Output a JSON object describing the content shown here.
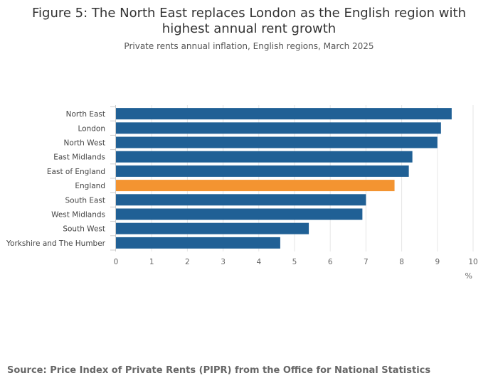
{
  "title": "Figure 5: The North East replaces London as the English region with highest annual rent growth",
  "subtitle": "Private rents annual inflation, English regions, March 2025",
  "source": "Source: Price Index of Private Rents (PIPR) from the Office for National Statistics",
  "colors": {
    "bar": "#206095",
    "highlight": "#f39431",
    "grid": "#e6e6e6",
    "axis_text": "#666666"
  },
  "chart_data": {
    "type": "bar",
    "orientation": "horizontal",
    "categories": [
      "North East",
      "London",
      "North West",
      "East Midlands",
      "East of England",
      "England",
      "South East",
      "West Midlands",
      "South West",
      "Yorkshire and The Humber"
    ],
    "values": [
      9.4,
      9.1,
      9.0,
      8.3,
      8.2,
      7.8,
      7.0,
      6.9,
      5.4,
      4.6
    ],
    "highlight_category": "England",
    "xlabel": "%",
    "xlim": [
      0,
      10
    ],
    "xticks": [
      0,
      1,
      2,
      3,
      4,
      5,
      6,
      7,
      8,
      9,
      10
    ],
    "grid": true
  }
}
